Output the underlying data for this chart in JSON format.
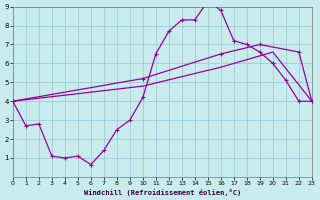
{
  "xlabel": "Windchill (Refroidissement éolien,°C)",
  "background_color": "#c8ecee",
  "grid_color": "#a0ccd4",
  "line_color": "#990099",
  "line1_x": [
    0,
    1,
    2,
    3,
    4,
    5,
    6,
    7,
    8,
    9,
    10,
    11,
    12,
    13,
    14,
    15,
    16,
    17,
    18,
    19,
    20,
    21,
    22,
    23
  ],
  "line1_y": [
    4.0,
    2.7,
    2.8,
    1.1,
    1.0,
    1.1,
    0.65,
    1.4,
    2.5,
    3.0,
    4.2,
    6.5,
    7.7,
    8.3,
    8.3,
    9.3,
    8.8,
    7.2,
    7.0,
    6.6,
    6.0,
    5.1,
    4.0,
    4.0
  ],
  "line2_x": [
    0,
    10,
    16,
    19,
    22,
    23
  ],
  "line2_y": [
    4.0,
    5.2,
    6.5,
    7.0,
    6.6,
    4.0
  ],
  "line3_x": [
    0,
    10,
    16,
    20,
    23
  ],
  "line3_y": [
    4.0,
    4.8,
    5.8,
    6.6,
    4.0
  ],
  "xlim": [
    0,
    23
  ],
  "ylim": [
    0,
    9
  ],
  "xticks": [
    0,
    1,
    2,
    3,
    4,
    5,
    6,
    7,
    8,
    9,
    10,
    11,
    12,
    13,
    14,
    15,
    16,
    17,
    18,
    19,
    20,
    21,
    22,
    23
  ],
  "yticks": [
    1,
    2,
    3,
    4,
    5,
    6,
    7,
    8,
    9
  ]
}
